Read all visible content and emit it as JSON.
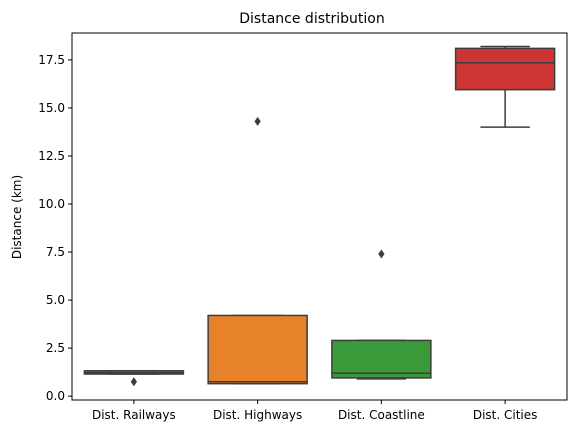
{
  "chart_data": {
    "type": "box",
    "title": "Distance distribution",
    "xlabel": "",
    "ylabel": "Distance (km)",
    "ylim": [
      -0.2,
      18.9
    ],
    "yticks": [
      0.0,
      2.5,
      5.0,
      7.5,
      10.0,
      12.5,
      15.0,
      17.5
    ],
    "ytick_labels": [
      "0.0",
      "2.5",
      "5.0",
      "7.5",
      "10.0",
      "12.5",
      "15.0",
      "17.5"
    ],
    "categories": [
      "Dist. Railways",
      "Dist. Highways",
      "Dist. Coastline",
      "Dist. Cities"
    ],
    "grid": false,
    "boxes": [
      {
        "category": "Dist. Railways",
        "color": "#3a6f98",
        "whisker_low": 1.15,
        "q1": 1.15,
        "median": 1.22,
        "q3": 1.32,
        "whisker_high": 1.32,
        "outliers": [
          0.75
        ]
      },
      {
        "category": "Dist. Highways",
        "color": "#e8822a",
        "whisker_low": 0.65,
        "q1": 0.65,
        "median": 0.75,
        "q3": 4.2,
        "whisker_high": 4.2,
        "outliers": [
          14.3
        ]
      },
      {
        "category": "Dist. Coastline",
        "color": "#3a9a3a",
        "whisker_low": 0.9,
        "q1": 0.95,
        "median": 1.2,
        "q3": 2.9,
        "whisker_high": 2.9,
        "outliers": [
          7.4
        ]
      },
      {
        "category": "Dist. Cities",
        "color": "#cc3534",
        "whisker_low": 14.0,
        "q1": 15.95,
        "median": 17.35,
        "q3": 18.1,
        "whisker_high": 18.2,
        "outliers": []
      }
    ]
  }
}
